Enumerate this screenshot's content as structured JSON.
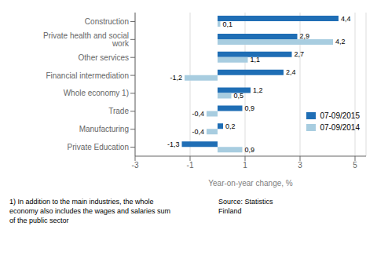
{
  "chart_data": {
    "type": "bar",
    "orientation": "horizontal",
    "categories": [
      "Construction",
      "Private health and social work",
      "Other services",
      "Financial intermediation",
      "Whole economy 1)",
      "Trade",
      "Manufacturing",
      "Private Education"
    ],
    "series": [
      {
        "name": "07-09/2015",
        "color": "#1f6eb5",
        "values": [
          4.4,
          2.9,
          2.7,
          2.4,
          1.2,
          0.9,
          0.2,
          -1.3
        ],
        "value_labels": [
          "4,4",
          "2,9",
          "2,7",
          "2,4",
          "1,2",
          "0,9",
          "0,2",
          "-1,3"
        ]
      },
      {
        "name": "07-09/2014",
        "color": "#a8cde0",
        "values": [
          0.1,
          4.2,
          1.1,
          -1.2,
          0.5,
          -0.4,
          -0.4,
          0.9
        ],
        "value_labels": [
          "0,1",
          "4,2",
          "1,1",
          "-1,2",
          "0,5",
          "-0,4",
          "-0,4",
          "0,9"
        ]
      }
    ],
    "xlabel": "Year-on-year change, %",
    "xlim": [
      -3,
      5.4
    ],
    "xticks": [
      -3,
      -1,
      1,
      3,
      5
    ],
    "grid": true,
    "legend": "lower right",
    "data_labels": true,
    "annotations": [
      "1) In addition to the main industries, the whole\neconomy also includes the wages and salaries sum\nof the public sector",
      "Source: Statistics\nFinland"
    ]
  }
}
